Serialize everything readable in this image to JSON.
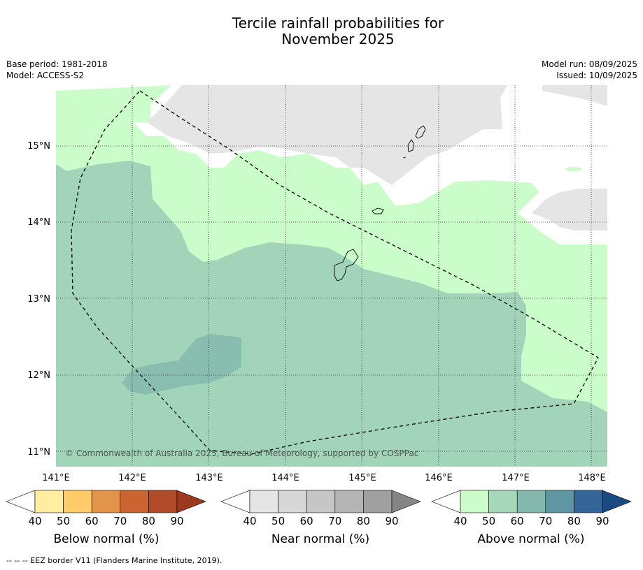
{
  "title": {
    "line1": "Tercile rainfall probabilities for",
    "line2": "November 2025"
  },
  "meta": {
    "base_period": "Base period: 1981-2018",
    "model": "Model: ACCESS-S2",
    "model_run": "Model run: 08/09/2025",
    "issued": "Issued: 10/09/2025"
  },
  "map": {
    "copyright": "© Commonwealth of Australia 2025, Bureau of Meteorology, supported by COSPPac",
    "lat_labels": [
      "15°N",
      "14°N",
      "13°N",
      "12°N",
      "11°N"
    ],
    "lon_labels": [
      "141°E",
      "142°E",
      "143°E",
      "144°E",
      "145°E",
      "146°E",
      "147°E",
      "148°E"
    ],
    "colors": {
      "above_40": "#cafdc9",
      "above_50": "#a2d4ba",
      "above_60": "#85b8ad",
      "near_40": "#e5e5e5",
      "land_outline": "#000000",
      "eez_border": "#000000"
    }
  },
  "colorbars": [
    {
      "label": "Below normal (%)",
      "ticks": [
        "40",
        "50",
        "60",
        "70",
        "80",
        "90"
      ],
      "colors": [
        "#ffffff",
        "#ffeea0",
        "#fdcc68",
        "#e2944b",
        "#cc6432",
        "#b14a28",
        "#9c3a20"
      ]
    },
    {
      "label": "Near normal (%)",
      "ticks": [
        "40",
        "50",
        "60",
        "70",
        "80",
        "90"
      ],
      "colors": [
        "#ffffff",
        "#e5e5e5",
        "#d7d7d7",
        "#c6c6c6",
        "#b4b4b4",
        "#a0a0a0",
        "#858585"
      ]
    },
    {
      "label": "Above normal (%)",
      "ticks": [
        "40",
        "50",
        "60",
        "70",
        "80",
        "90"
      ],
      "colors": [
        "#ffffff",
        "#cafdc9",
        "#a5d7ba",
        "#85b8ad",
        "#5e97a3",
        "#346699",
        "#1a4a84"
      ]
    }
  ],
  "footnote": "--  --  -- EEZ border V11 (Flanders Marine Institute, 2019)."
}
